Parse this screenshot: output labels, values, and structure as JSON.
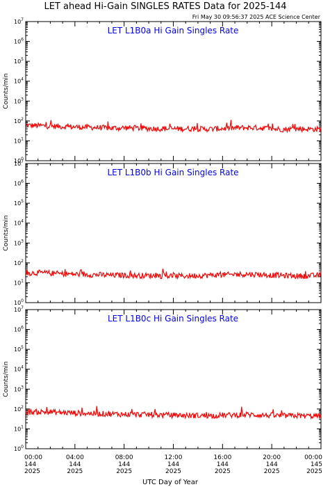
{
  "figure": {
    "title": "LET ahead Hi-Gain SINGLES RATES Data for 2025-144",
    "stamp": "Fri May 30 09:56:37 2025 ACE Science Center",
    "xlabel": "UTC Day of Year",
    "ylabel": "Counts/min",
    "panel_title_color": "#0000ff",
    "trace_color": "#ff0000",
    "x_ticks": [
      {
        "time": "00:00",
        "doy": "144",
        "year": "2025"
      },
      {
        "time": "04:00",
        "doy": "144",
        "year": "2025"
      },
      {
        "time": "08:00",
        "doy": "144",
        "year": "2025"
      },
      {
        "time": "12:00",
        "doy": "144",
        "year": "2025"
      },
      {
        "time": "16:00",
        "doy": "144",
        "year": "2025"
      },
      {
        "time": "20:00",
        "doy": "144",
        "year": "2025"
      },
      {
        "time": "00:00",
        "doy": "145",
        "year": "2025"
      }
    ],
    "y_tick_exponents": [
      0,
      1,
      2,
      3,
      4,
      5,
      6,
      7
    ]
  },
  "chart_data": [
    {
      "type": "line",
      "title": "LET L1B0a Hi Gain Singles Rate",
      "xlabel": "UTC Day of Year",
      "ylabel": "Counts/min",
      "x_range_hours": [
        0,
        24
      ],
      "ylim": [
        1,
        10000000
      ],
      "y_scale": "log",
      "series": [
        {
          "x": [
            0,
            1,
            2,
            3,
            4,
            5,
            6,
            7,
            8,
            9,
            10,
            11,
            12,
            13,
            14,
            15,
            16,
            17,
            18,
            19,
            20,
            21,
            22,
            23,
            24
          ],
          "y": [
            60,
            58,
            55,
            52,
            50,
            48,
            46,
            44,
            45,
            43,
            42,
            41,
            40,
            41,
            40,
            39,
            42,
            44,
            46,
            45,
            40,
            38,
            40,
            39,
            38
          ]
        }
      ]
    },
    {
      "type": "line",
      "title": "LET L1B0b Hi Gain Singles Rate",
      "xlabel": "UTC Day of Year",
      "ylabel": "Counts/min",
      "x_range_hours": [
        0,
        24
      ],
      "ylim": [
        1,
        10000000
      ],
      "y_scale": "log",
      "series": [
        {
          "x": [
            0,
            1,
            2,
            3,
            4,
            5,
            6,
            7,
            8,
            9,
            10,
            11,
            12,
            13,
            14,
            15,
            16,
            17,
            18,
            19,
            20,
            21,
            22,
            23,
            24
          ],
          "y": [
            30,
            32,
            30,
            28,
            27,
            26,
            25,
            24,
            24,
            23,
            23,
            22,
            22,
            22,
            23,
            24,
            25,
            26,
            27,
            26,
            24,
            23,
            22,
            22,
            24
          ]
        }
      ]
    },
    {
      "type": "line",
      "title": "LET L1B0c Hi Gain Singles Rate",
      "xlabel": "UTC Day of Year",
      "ylabel": "Counts/min",
      "x_range_hours": [
        0,
        24
      ],
      "ylim": [
        1,
        10000000
      ],
      "y_scale": "log",
      "series": [
        {
          "x": [
            0,
            1,
            2,
            3,
            4,
            5,
            6,
            7,
            8,
            9,
            10,
            11,
            12,
            13,
            14,
            15,
            16,
            17,
            18,
            19,
            20,
            21,
            22,
            23,
            24
          ],
          "y": [
            70,
            72,
            70,
            66,
            63,
            60,
            58,
            56,
            54,
            53,
            52,
            50,
            48,
            47,
            47,
            46,
            48,
            50,
            52,
            50,
            47,
            45,
            46,
            45,
            44
          ]
        }
      ]
    }
  ]
}
